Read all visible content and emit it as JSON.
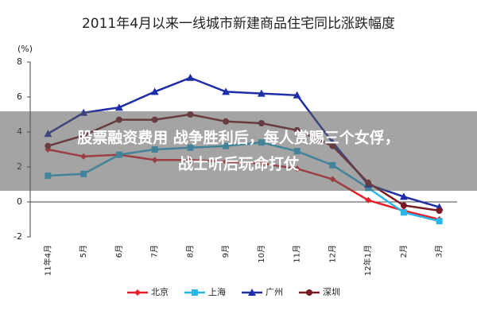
{
  "chart_data": {
    "type": "line",
    "title": "2011年4月以来一线城市新建商品住宅同比涨跌幅度",
    "y_label": "(%)",
    "categories": [
      "11年4月",
      "5月",
      "6月",
      "7月",
      "8月",
      "9月",
      "10月",
      "11月",
      "12月",
      "12年1月",
      "2月",
      "3月"
    ],
    "series": [
      {
        "name": "北京",
        "color": "#e8202a",
        "marker": "diamond",
        "values": [
          3.0,
          2.6,
          2.7,
          2.4,
          2.4,
          2.3,
          2.2,
          1.9,
          1.3,
          0.1,
          -0.5,
          -1.0
        ]
      },
      {
        "name": "上海",
        "color": "#29b6e8",
        "marker": "square",
        "values": [
          1.5,
          1.6,
          2.7,
          3.0,
          3.1,
          3.2,
          3.4,
          2.9,
          2.1,
          0.8,
          -0.6,
          -1.1
        ]
      },
      {
        "name": "广州",
        "color": "#1e2ea8",
        "marker": "triangle",
        "values": [
          3.9,
          5.1,
          5.4,
          6.3,
          7.1,
          6.3,
          6.2,
          6.1,
          3.4,
          1.0,
          0.3,
          -0.3
        ]
      },
      {
        "name": "深圳",
        "color": "#7a1a22",
        "marker": "circle",
        "values": [
          3.2,
          3.8,
          4.7,
          4.7,
          5.0,
          4.6,
          4.5,
          4.1,
          3.2,
          1.1,
          -0.2,
          -0.5
        ]
      }
    ],
    "ylim": [
      -2,
      8
    ],
    "yticks": [
      -2,
      0,
      2,
      4,
      6,
      8
    ],
    "grid": false,
    "legend": "bottom"
  },
  "overlay": {
    "lines": [
      "股票融资费用 战争胜利后，每人赏赐三个女俘，",
      "战士听后玩命打仗"
    ]
  }
}
